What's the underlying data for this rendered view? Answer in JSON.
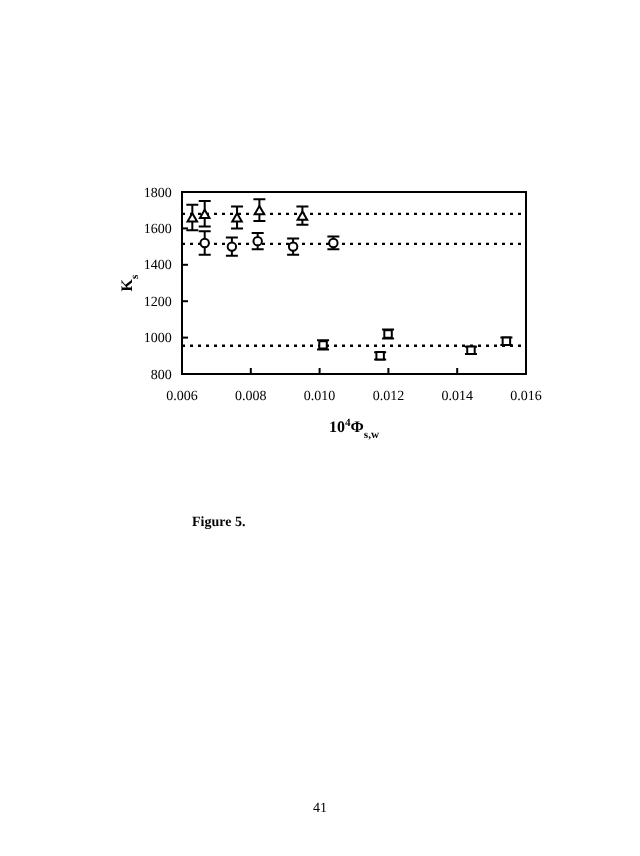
{
  "chart_data": {
    "type": "scatter",
    "xlabel": "10$^{4}$Φ$_{s,w}$",
    "ylabel": "K$_{s}$",
    "annotations": [
      "Figure 5.",
      "41"
    ],
    "series": [
      {
        "color": "#000000",
        "marker": "triangle",
        "x": [
          0.0063,
          0.00666,
          0.0076,
          0.00825,
          0.0095
        ],
        "values": [
          1660,
          1680,
          1660,
          1700,
          1670
        ],
        "errors": [
          70,
          70,
          60,
          60,
          50
        ]
      },
      {
        "color": "#000000",
        "marker": "circle",
        "x": [
          0.00666,
          0.00745,
          0.0082,
          0.00923,
          0.0104
        ],
        "values": [
          1520,
          1500,
          1530,
          1500,
          1520
        ],
        "errors": [
          65,
          50,
          45,
          45,
          35
        ]
      },
      {
        "color": "#000000",
        "marker": "square",
        "x": [
          0.0101,
          0.01176,
          0.01199,
          0.0144,
          0.01543
        ],
        "values": [
          960,
          900,
          1020,
          930,
          980
        ],
        "errors": [
          25,
          20,
          25,
          20,
          20
        ]
      }
    ],
    "ref_lines": [
      {
        "axis": "y",
        "value": 1680,
        "line_style": "dotted"
      },
      {
        "axis": "y",
        "value": 1515,
        "line_style": "dotted"
      },
      {
        "axis": "y",
        "value": 955,
        "line_style": "dotted"
      }
    ],
    "xlim": [
      0.006,
      0.016
    ],
    "xticks": [
      0.006,
      0.008,
      {
        "value": 0.01,
        "label": "0.010"
      },
      0.012,
      0.014,
      0.016
    ],
    "ylim": [
      800,
      1800
    ],
    "yticks": [
      800,
      1000,
      1200,
      1400,
      1600,
      1800
    ],
    "grid": false
  }
}
